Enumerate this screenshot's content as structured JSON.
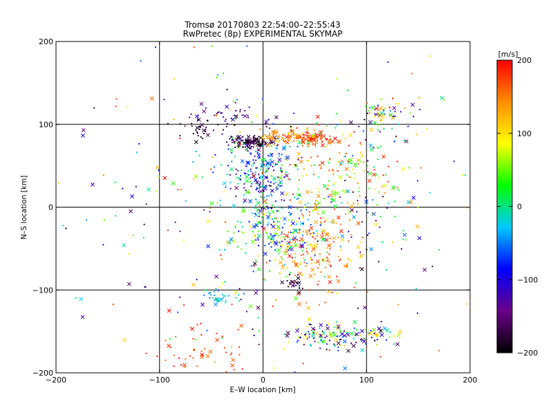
{
  "chart_data": {
    "type": "scatter",
    "title": "Tromsø 20170803 22:54:00–22:55:43",
    "subtitle": "RwPretec (8p) EXPERIMENTAL SKYMAP",
    "xlabel": "E–W location [km]",
    "ylabel": "N–S location [km]",
    "xlim": [
      -200,
      200
    ],
    "ylim": [
      -200,
      200
    ],
    "x_ticks": [
      -200,
      -100,
      0,
      100,
      200
    ],
    "y_ticks": [
      -200,
      -100,
      0,
      100,
      200
    ],
    "x_tick_labels": [
      "−200",
      "−100",
      "0",
      "100",
      "200"
    ],
    "y_tick_labels": [
      "−200",
      "−100",
      "0",
      "100",
      "200"
    ],
    "grid_lines": [
      -100,
      0,
      100
    ],
    "grid": true,
    "colorbar": {
      "label": "[m/s]",
      "range": [
        -200,
        200
      ],
      "ticks": [
        200,
        100,
        0,
        -100,
        -200
      ],
      "tick_labels": [
        "200",
        "100",
        "0",
        "−100",
        "−200"
      ],
      "colors": [
        "#000000",
        "#6a008a",
        "#0000ff",
        "#00c8ff",
        "#00ff00",
        "#ffff00",
        "#ff8c00",
        "#ff0000"
      ]
    },
    "marker_types": [
      "dot",
      "cross"
    ],
    "clusters": [
      {
        "x": -10,
        "y": 78,
        "sx": 12,
        "sy": 4,
        "n": 120,
        "vmin": -200,
        "vmax": -150
      },
      {
        "x": 45,
        "y": 82,
        "sx": 12,
        "sy": 4,
        "n": 100,
        "vmin": 150,
        "vmax": 200
      },
      {
        "x": 20,
        "y": 85,
        "sx": 15,
        "sy": 6,
        "n": 60,
        "vmin": 100,
        "vmax": 160
      },
      {
        "x": -60,
        "y": 92,
        "sx": 8,
        "sy": 6,
        "n": 25,
        "vmin": -200,
        "vmax": -170
      },
      {
        "x": -35,
        "y": 110,
        "sx": 20,
        "sy": 8,
        "n": 50,
        "vmin": -200,
        "vmax": -100
      },
      {
        "x": 115,
        "y": 108,
        "sx": 15,
        "sy": 10,
        "n": 60,
        "vmin": -200,
        "vmax": 200
      },
      {
        "x": 0,
        "y": 40,
        "sx": 18,
        "sy": 25,
        "n": 230,
        "vmin": -160,
        "vmax": 40
      },
      {
        "x": 15,
        "y": -30,
        "sx": 22,
        "sy": 25,
        "n": 200,
        "vmin": -100,
        "vmax": 100
      },
      {
        "x": 50,
        "y": -50,
        "sx": 22,
        "sy": 30,
        "n": 170,
        "vmin": 100,
        "vmax": 200
      },
      {
        "x": 65,
        "y": 40,
        "sx": 25,
        "sy": 30,
        "n": 120,
        "vmin": 0,
        "vmax": 200
      },
      {
        "x": 70,
        "y": -155,
        "sx": 30,
        "sy": 8,
        "n": 150,
        "vmin": -200,
        "vmax": 130
      },
      {
        "x": -45,
        "y": -108,
        "sx": 10,
        "sy": 6,
        "n": 35,
        "vmin": -60,
        "vmax": 10
      },
      {
        "x": 30,
        "y": -92,
        "sx": 6,
        "sy": 4,
        "n": 25,
        "vmin": -200,
        "vmax": -160
      },
      {
        "x": -60,
        "y": -175,
        "sx": 25,
        "sy": 15,
        "n": 50,
        "vmin": 150,
        "vmax": 200
      },
      {
        "x": 100,
        "y": 20,
        "sx": 25,
        "sy": 50,
        "n": 80,
        "vmin": -200,
        "vmax": 200
      },
      {
        "x": 0,
        "y": 0,
        "sx": 110,
        "sy": 110,
        "n": 320,
        "vmin": -200,
        "vmax": 200
      }
    ]
  }
}
